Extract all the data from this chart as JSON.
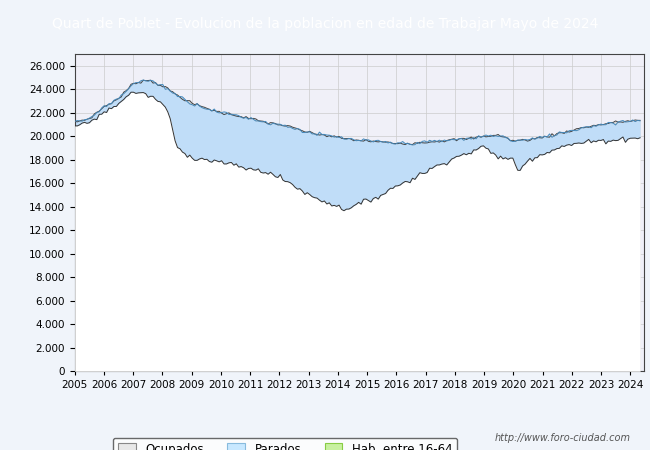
{
  "title": "Quart de Poblet - Evolucion de la poblacion en edad de Trabajar Mayo de 2024",
  "title_bg_color": "#4a90d9",
  "title_text_color": "white",
  "title_fontsize": 10,
  "ylim": [
    0,
    27000
  ],
  "yticks": [
    0,
    2000,
    4000,
    6000,
    8000,
    10000,
    12000,
    14000,
    16000,
    18000,
    20000,
    22000,
    24000,
    26000
  ],
  "xmin": 2005,
  "xmax": 2024.45,
  "legend_labels": [
    "Ocupados",
    "Parados",
    "Hab. entre 16-64"
  ],
  "legend_fill_colors": [
    "#e8e8e8",
    "#c8e8ff",
    "#c8f0a0"
  ],
  "legend_edge_colors": [
    "#888888",
    "#88bbdd",
    "#88cc44"
  ],
  "watermark": "http://www.foro-ciudad.com",
  "bg_color": "#f0f4fa",
  "plot_bg_color": "#f0f0f8",
  "grid_color": "#cccccc",
  "hab_fill_color": "#d8d8d8",
  "hab_line_color": "#444444",
  "parados_fill_color": "#c0ddf8",
  "parados_line_color": "#4488bb",
  "ocupados_line_color": "#333333",
  "hab_years": [
    2005,
    2005.5,
    2006,
    2006.5,
    2007,
    2007.5,
    2008,
    2008.5,
    2009,
    2009.5,
    2010,
    2010.5,
    2011,
    2011.5,
    2012,
    2012.5,
    2013,
    2013.5,
    2014,
    2014.5,
    2015,
    2015.5,
    2016,
    2016.5,
    2017,
    2017.5,
    2018,
    2018.5,
    2019,
    2019.5,
    2020,
    2020.5,
    2021,
    2021.5,
    2022,
    2022.5,
    2023,
    2023.5,
    2024,
    2024.4
  ],
  "hab_vals": [
    21200,
    21500,
    22500,
    23200,
    24500,
    24800,
    24300,
    23500,
    22800,
    22400,
    22000,
    21800,
    21500,
    21200,
    21000,
    20700,
    20300,
    20100,
    19900,
    19700,
    19600,
    19500,
    19400,
    19400,
    19500,
    19600,
    19700,
    19800,
    20000,
    20100,
    19600,
    19700,
    19900,
    20200,
    20500,
    20800,
    21000,
    21200,
    21300,
    21400
  ],
  "ocupados_years": [
    2005,
    2005.5,
    2006,
    2006.5,
    2007,
    2007.5,
    2008,
    2008.2,
    2008.5,
    2009,
    2009.5,
    2010,
    2010.5,
    2011,
    2011.5,
    2012,
    2012.5,
    2013,
    2013.5,
    2014,
    2014.2,
    2014.5,
    2015,
    2015.5,
    2016,
    2016.5,
    2017,
    2017.5,
    2018,
    2018.5,
    2019,
    2019.5,
    2020,
    2020.2,
    2020.5,
    2021,
    2021.5,
    2022,
    2022.5,
    2023,
    2023.5,
    2024,
    2024.4
  ],
  "ocupados_vals": [
    20800,
    21200,
    22000,
    22800,
    23800,
    23500,
    22800,
    22000,
    19000,
    18200,
    18000,
    17800,
    17500,
    17200,
    17000,
    16500,
    15800,
    15000,
    14500,
    14000,
    13800,
    14000,
    14500,
    15000,
    15800,
    16300,
    17000,
    17600,
    18200,
    18600,
    19100,
    18200,
    18000,
    17000,
    18000,
    18500,
    19000,
    19300,
    19500,
    19600,
    19700,
    19800,
    20000
  ],
  "parados_years": [
    2005,
    2005.5,
    2006,
    2006.5,
    2007,
    2007.5,
    2008,
    2008.5,
    2009,
    2009.5,
    2010,
    2010.5,
    2011,
    2011.5,
    2012,
    2012.5,
    2013,
    2013.5,
    2014,
    2014.5,
    2015,
    2015.5,
    2016,
    2016.5,
    2017,
    2017.5,
    2018,
    2018.5,
    2019,
    2019.5,
    2020,
    2020.5,
    2021,
    2021.5,
    2022,
    2022.5,
    2023,
    2023.5,
    2024,
    2024.4
  ],
  "parados_vals": [
    21200,
    21500,
    22500,
    23200,
    24500,
    24800,
    24300,
    23500,
    22800,
    22400,
    22000,
    21800,
    21500,
    21200,
    21000,
    20700,
    20300,
    20100,
    19900,
    19700,
    19600,
    19500,
    19400,
    19400,
    19500,
    19600,
    19700,
    19800,
    20000,
    20100,
    19600,
    19700,
    19900,
    20200,
    20500,
    20800,
    21000,
    21200,
    21300,
    21400
  ]
}
